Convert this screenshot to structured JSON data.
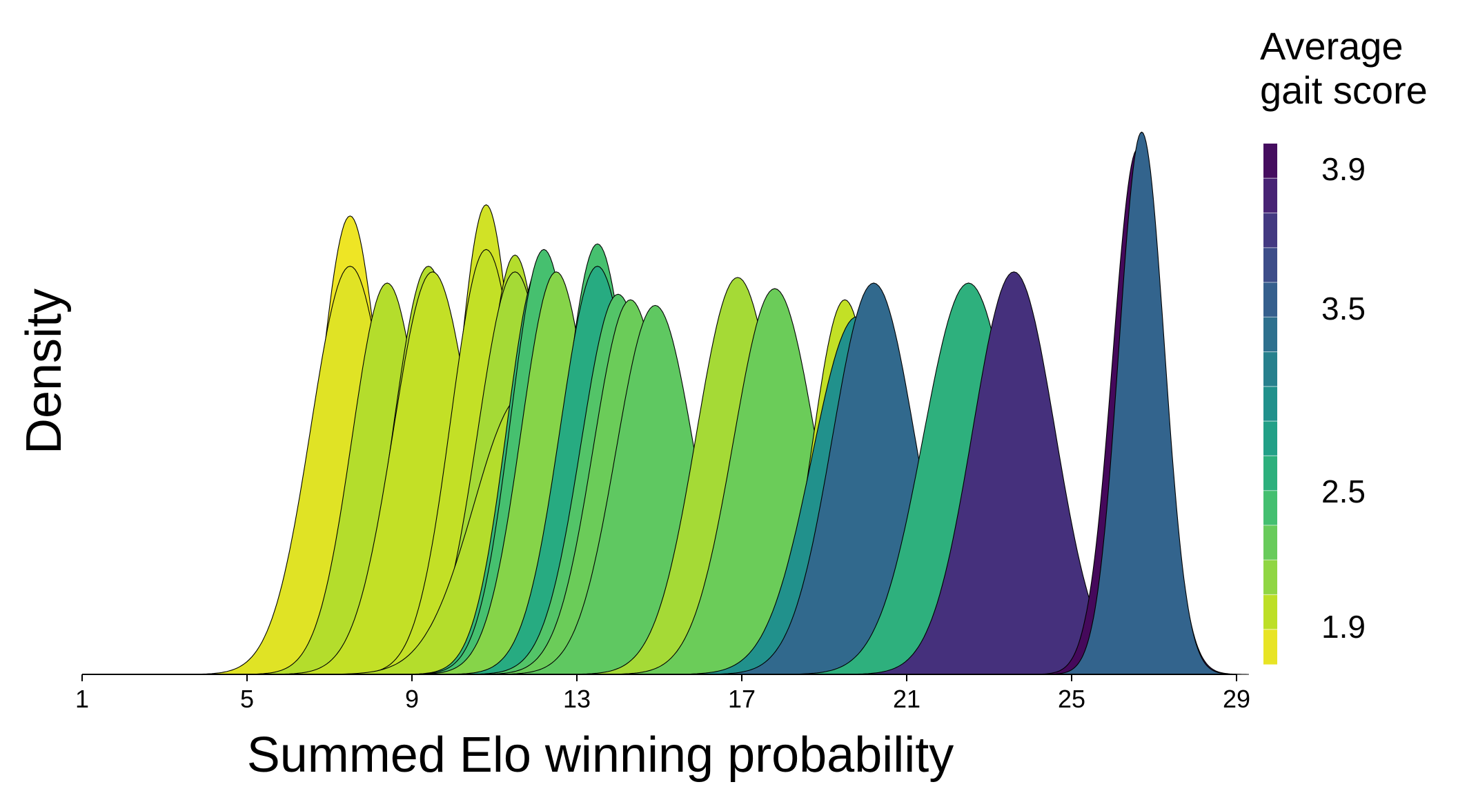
{
  "chart_data": {
    "type": "area",
    "subtype": "overlapping-density",
    "title": "",
    "xlabel": "Summed Elo winning probability",
    "ylabel": "Density",
    "xlim": [
      1,
      29
    ],
    "xticks": [
      1,
      5,
      9,
      13,
      17,
      21,
      25,
      29
    ],
    "grid": false,
    "legend": {
      "title_lines": [
        "Average",
        "gait score"
      ],
      "placement": "right",
      "kind": "colorbar",
      "ticks": [
        1.9,
        2.5,
        3.5,
        3.9
      ],
      "tick_labels": [
        "1.9",
        "2.5",
        "3.5",
        "3.9"
      ],
      "range": [
        1.8,
        4.0
      ],
      "steps": 15
    },
    "colorscale": {
      "name": "viridis",
      "stops": [
        "#440154",
        "#482475",
        "#414487",
        "#355f8d",
        "#2a788e",
        "#21918c",
        "#22a884",
        "#44bf70",
        "#7ad151",
        "#bddf26",
        "#fde725"
      ]
    },
    "series": [
      {
        "mean": 7.5,
        "sd": 0.75,
        "peak": 0.82,
        "gait": 1.85
      },
      {
        "mean": 7.5,
        "sd": 0.95,
        "peak": 0.73,
        "gait": 1.9
      },
      {
        "mean": 8.4,
        "sd": 0.85,
        "peak": 0.7,
        "gait": 2.05
      },
      {
        "mean": 9.4,
        "sd": 0.85,
        "peak": 0.73,
        "gait": 2.05
      },
      {
        "mean": 9.5,
        "sd": 0.95,
        "peak": 0.72,
        "gait": 2.0
      },
      {
        "mean": 10.8,
        "sd": 0.7,
        "peak": 0.84,
        "gait": 1.95
      },
      {
        "mean": 10.8,
        "sd": 0.85,
        "peak": 0.76,
        "gait": 2.0
      },
      {
        "mean": 11.5,
        "sd": 0.75,
        "peak": 0.75,
        "gait": 2.05
      },
      {
        "mean": 11.5,
        "sd": 0.9,
        "peak": 0.72,
        "gait": 2.1
      },
      {
        "mean": 12.1,
        "sd": 0.8,
        "peak": 0.73,
        "gait": 2.55
      },
      {
        "mean": 12.2,
        "sd": 0.8,
        "peak": 0.76,
        "gait": 2.45
      },
      {
        "mean": 12.5,
        "sd": 0.85,
        "peak": 0.72,
        "gait": 2.2
      },
      {
        "mean": 11.7,
        "sd": 1.2,
        "peak": 0.5,
        "gait": 2.05
      },
      {
        "mean": 13.5,
        "sd": 0.8,
        "peak": 0.77,
        "gait": 2.45
      },
      {
        "mean": 13.5,
        "sd": 0.9,
        "peak": 0.73,
        "gait": 2.65
      },
      {
        "mean": 14.0,
        "sd": 0.9,
        "peak": 0.68,
        "gait": 2.4
      },
      {
        "mean": 14.3,
        "sd": 0.9,
        "peak": 0.67,
        "gait": 2.3
      },
      {
        "mean": 14.9,
        "sd": 0.95,
        "peak": 0.66,
        "gait": 2.35
      },
      {
        "mean": 16.9,
        "sd": 1.0,
        "peak": 0.71,
        "gait": 2.1
      },
      {
        "mean": 17.8,
        "sd": 1.0,
        "peak": 0.69,
        "gait": 2.3
      },
      {
        "mean": 19.5,
        "sd": 0.8,
        "peak": 0.67,
        "gait": 2.0
      },
      {
        "mean": 20.2,
        "sd": 1.0,
        "peak": 0.7,
        "gait": 3.25
      },
      {
        "mean": 19.8,
        "sd": 1.1,
        "peak": 0.64,
        "gait": 2.9
      },
      {
        "mean": 22.5,
        "sd": 1.1,
        "peak": 0.7,
        "gait": 2.6
      },
      {
        "mean": 23.6,
        "sd": 1.0,
        "peak": 0.72,
        "gait": 3.7
      },
      {
        "mean": 26.7,
        "sd": 0.55,
        "peak": 0.97,
        "gait": 3.3
      },
      {
        "mean": 26.6,
        "sd": 0.6,
        "peak": 0.94,
        "gait": 3.95
      }
    ]
  }
}
